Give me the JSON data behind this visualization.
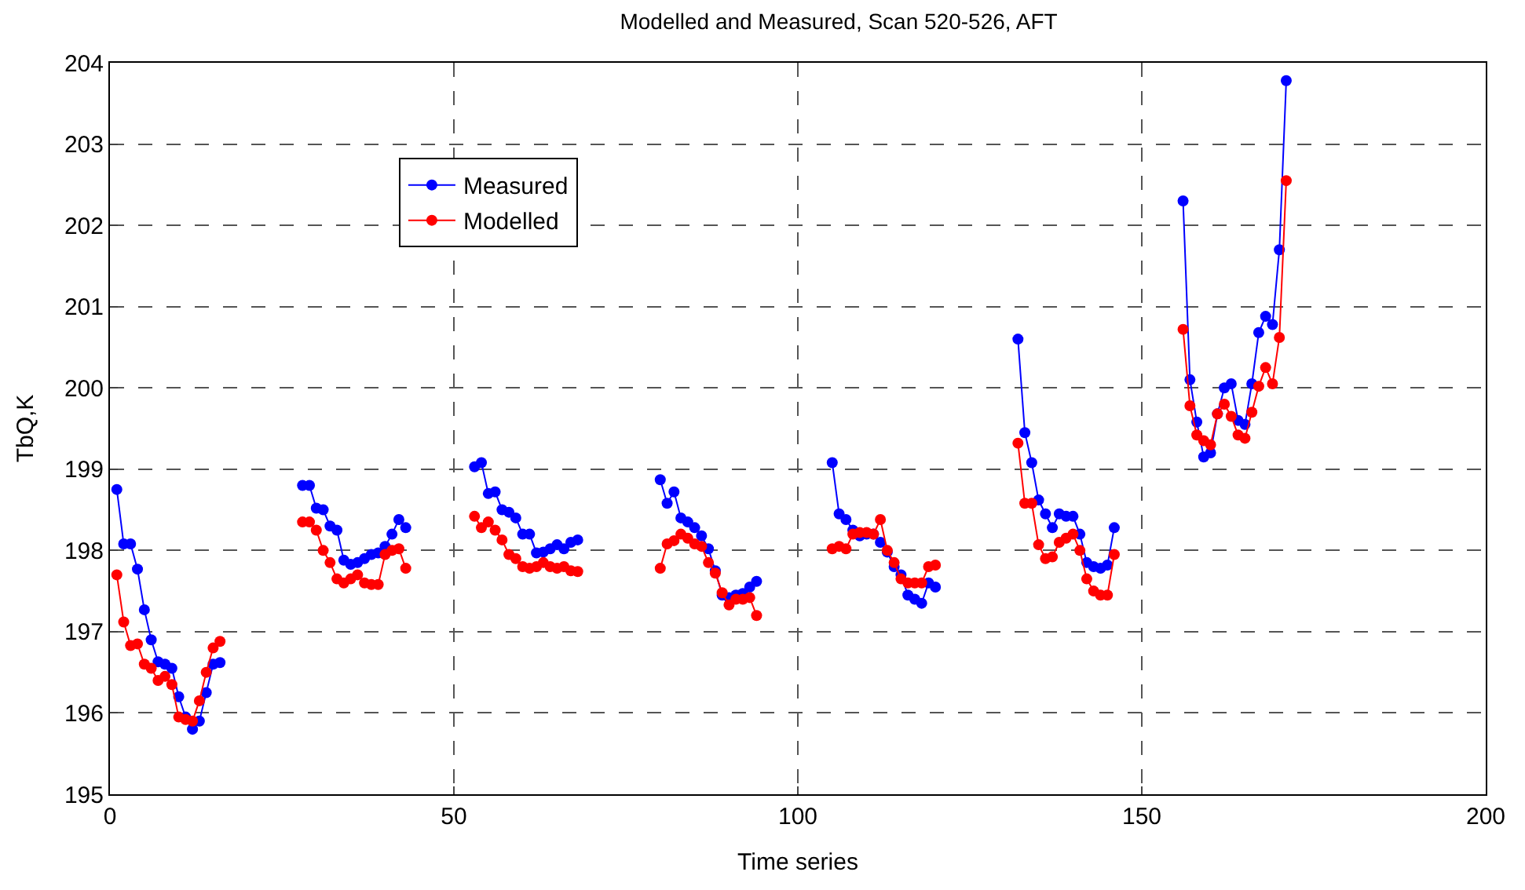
{
  "chart_data": {
    "type": "line",
    "title": "Modelled and Measured, Scan 520-526, AFT",
    "xlabel": "Time series",
    "ylabel": "TbQ,K",
    "xlim": [
      0,
      200
    ],
    "xticks": [
      0,
      50,
      100,
      150,
      200
    ],
    "ylim": [
      195,
      204
    ],
    "yticks": [
      195,
      196,
      197,
      198,
      199,
      200,
      201,
      202,
      203,
      204
    ],
    "grid": true,
    "legend": "top left",
    "marker": "circle",
    "line_style": "solid",
    "x": [
      1,
      2,
      3,
      4,
      5,
      6,
      7,
      8,
      9,
      10,
      11,
      12,
      13,
      14,
      15,
      16,
      22,
      28,
      29,
      30,
      31,
      32,
      33,
      34,
      35,
      36,
      37,
      38,
      39,
      40,
      41,
      42,
      43,
      48,
      53,
      54,
      55,
      56,
      57,
      58,
      59,
      60,
      61,
      62,
      63,
      64,
      65,
      66,
      67,
      68,
      74,
      80,
      81,
      82,
      83,
      84,
      85,
      86,
      87,
      88,
      89,
      90,
      91,
      92,
      93,
      94,
      100,
      105,
      106,
      107,
      108,
      109,
      110,
      111,
      112,
      113,
      114,
      115,
      116,
      117,
      118,
      119,
      120,
      126,
      132,
      133,
      134,
      135,
      136,
      137,
      138,
      139,
      140,
      141,
      142,
      143,
      144,
      145,
      146,
      151,
      156,
      157,
      158,
      159,
      160,
      161,
      162,
      163,
      164,
      165,
      166,
      167,
      168,
      169,
      170,
      171
    ],
    "series": [
      {
        "name": "Measured",
        "color": "#0000ff",
        "values": [
          198.75,
          198.08,
          198.08,
          197.77,
          197.27,
          196.9,
          196.63,
          196.6,
          196.55,
          196.2,
          195.95,
          195.8,
          195.9,
          196.25,
          196.6,
          196.62,
          null,
          198.8,
          198.8,
          198.52,
          198.5,
          198.3,
          198.25,
          197.88,
          197.83,
          197.85,
          197.9,
          197.95,
          197.97,
          198.05,
          198.2,
          198.38,
          198.28,
          null,
          199.03,
          199.08,
          198.7,
          198.72,
          198.5,
          198.47,
          198.4,
          198.2,
          198.2,
          197.97,
          197.98,
          198.02,
          198.07,
          198.02,
          198.1,
          198.13,
          null,
          198.87,
          198.58,
          198.72,
          198.4,
          198.35,
          198.28,
          198.18,
          198.02,
          197.75,
          197.45,
          197.42,
          197.45,
          197.47,
          197.55,
          197.62,
          null,
          199.08,
          198.45,
          198.38,
          198.25,
          198.18,
          198.2,
          198.2,
          198.1,
          197.98,
          197.8,
          197.7,
          197.45,
          197.4,
          197.35,
          197.6,
          197.55,
          null,
          200.6,
          199.45,
          199.08,
          198.62,
          198.45,
          198.28,
          198.45,
          198.42,
          198.42,
          198.2,
          197.85,
          197.8,
          197.78,
          197.82,
          198.28,
          null,
          202.3,
          200.1,
          199.58,
          199.15,
          199.2,
          199.68,
          200.0,
          200.05,
          199.6,
          199.55,
          200.05,
          200.68,
          200.88,
          200.78,
          201.7,
          203.78
        ]
      },
      {
        "name": "Modelled",
        "color": "#ff0000",
        "values": [
          197.7,
          197.12,
          196.83,
          196.85,
          196.6,
          196.55,
          196.4,
          196.45,
          196.35,
          195.95,
          195.92,
          195.9,
          196.15,
          196.5,
          196.8,
          196.88,
          null,
          198.35,
          198.35,
          198.25,
          198.0,
          197.85,
          197.65,
          197.6,
          197.65,
          197.7,
          197.6,
          197.58,
          197.58,
          197.95,
          198.0,
          198.02,
          197.78,
          null,
          198.42,
          198.28,
          198.35,
          198.25,
          198.13,
          197.95,
          197.9,
          197.8,
          197.78,
          197.8,
          197.85,
          197.8,
          197.78,
          197.8,
          197.75,
          197.74,
          null,
          197.78,
          198.08,
          198.12,
          198.2,
          198.15,
          198.08,
          198.05,
          197.85,
          197.72,
          197.48,
          197.33,
          197.4,
          197.4,
          197.42,
          197.2,
          null,
          198.02,
          198.05,
          198.02,
          198.2,
          198.22,
          198.22,
          198.2,
          198.38,
          198.0,
          197.85,
          197.65,
          197.6,
          197.6,
          197.6,
          197.8,
          197.82,
          null,
          199.32,
          198.58,
          198.58,
          198.07,
          197.9,
          197.92,
          198.1,
          198.15,
          198.2,
          198.0,
          197.65,
          197.5,
          197.45,
          197.45,
          197.95,
          null,
          200.72,
          199.78,
          199.42,
          199.35,
          199.3,
          199.68,
          199.8,
          199.65,
          199.42,
          199.38,
          199.7,
          200.02,
          200.25,
          200.05,
          200.62,
          202.55
        ]
      }
    ]
  }
}
